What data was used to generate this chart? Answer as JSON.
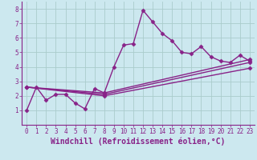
{
  "xlabel": "Windchill (Refroidissement éolien,°C)",
  "background_color": "#cce8ef",
  "grid_color": "#aacccc",
  "line_color": "#882288",
  "xlim": [
    -0.5,
    23.5
  ],
  "ylim": [
    0,
    8.5
  ],
  "xticks": [
    0,
    1,
    2,
    3,
    4,
    5,
    6,
    7,
    8,
    9,
    10,
    11,
    12,
    13,
    14,
    15,
    16,
    17,
    18,
    19,
    20,
    21,
    22,
    23
  ],
  "yticks": [
    1,
    2,
    3,
    4,
    5,
    6,
    7,
    8
  ],
  "series1_x": [
    0,
    1,
    2,
    3,
    4,
    5,
    6,
    7,
    8,
    9,
    10,
    11,
    12,
    13,
    14,
    15,
    16,
    17,
    18,
    19,
    20,
    21,
    22,
    23
  ],
  "series1_y": [
    1.0,
    2.6,
    1.7,
    2.1,
    2.1,
    1.5,
    1.1,
    2.5,
    2.2,
    4.0,
    5.5,
    5.6,
    7.9,
    7.1,
    6.3,
    5.8,
    5.0,
    4.9,
    5.4,
    4.7,
    4.4,
    4.3,
    4.8,
    4.4
  ],
  "series2_x": [
    0,
    8,
    23
  ],
  "series2_y": [
    2.6,
    2.2,
    4.5
  ],
  "series3_x": [
    0,
    8,
    23
  ],
  "series3_y": [
    2.6,
    2.1,
    4.3
  ],
  "series4_x": [
    0,
    8,
    23
  ],
  "series4_y": [
    2.6,
    2.0,
    3.9
  ],
  "marker": "D",
  "markersize": 2.5,
  "linewidth": 1.0,
  "tick_fontsize": 5.5,
  "xlabel_fontsize": 7.0,
  "spine_color": "#882288"
}
